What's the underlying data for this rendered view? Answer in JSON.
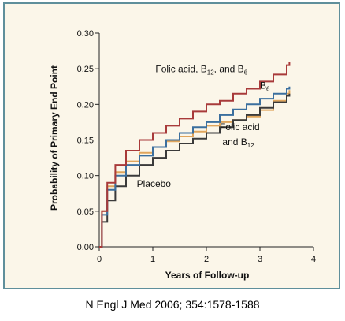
{
  "citation": "N Engl J Med 2006; 354:1578-1588",
  "chart_data": {
    "type": "line",
    "title": "",
    "xlabel": "Years of Follow-up",
    "ylabel": "Probability of Primary End Point",
    "xlim": [
      0,
      4
    ],
    "ylim": [
      0,
      0.3
    ],
    "x_ticks": [
      "0",
      "1",
      "2",
      "3",
      "4"
    ],
    "y_ticks": [
      "0.00",
      "0.05",
      "0.10",
      "0.15",
      "0.20",
      "0.25",
      "0.30"
    ],
    "series": [
      {
        "name": "Folic acid, B12, and B6",
        "color": "#a83a3a",
        "points": [
          [
            0,
            0
          ],
          [
            0.05,
            0.05
          ],
          [
            0.15,
            0.09
          ],
          [
            0.3,
            0.115
          ],
          [
            0.5,
            0.135
          ],
          [
            0.75,
            0.15
          ],
          [
            1,
            0.16
          ],
          [
            1.25,
            0.17
          ],
          [
            1.5,
            0.18
          ],
          [
            1.75,
            0.19
          ],
          [
            2,
            0.2
          ],
          [
            2.25,
            0.205
          ],
          [
            2.5,
            0.215
          ],
          [
            2.75,
            0.222
          ],
          [
            3,
            0.232
          ],
          [
            3.25,
            0.242
          ],
          [
            3.5,
            0.255
          ],
          [
            3.55,
            0.26
          ]
        ]
      },
      {
        "name": "B6",
        "color": "#3b6f9e",
        "points": [
          [
            0,
            0
          ],
          [
            0.05,
            0.045
          ],
          [
            0.15,
            0.08
          ],
          [
            0.3,
            0.1
          ],
          [
            0.5,
            0.115
          ],
          [
            0.75,
            0.128
          ],
          [
            1,
            0.14
          ],
          [
            1.25,
            0.15
          ],
          [
            1.5,
            0.16
          ],
          [
            1.75,
            0.168
          ],
          [
            2,
            0.175
          ],
          [
            2.25,
            0.185
          ],
          [
            2.5,
            0.193
          ],
          [
            2.75,
            0.2
          ],
          [
            3,
            0.208
          ],
          [
            3.25,
            0.215
          ],
          [
            3.5,
            0.222
          ],
          [
            3.55,
            0.225
          ]
        ]
      },
      {
        "name": "Folic acid and B12",
        "color": "#e0a55c",
        "points": [
          [
            0,
            0
          ],
          [
            0.05,
            0.05
          ],
          [
            0.15,
            0.085
          ],
          [
            0.3,
            0.105
          ],
          [
            0.5,
            0.12
          ],
          [
            0.75,
            0.132
          ],
          [
            1,
            0.14
          ],
          [
            1.25,
            0.148
          ],
          [
            1.5,
            0.155
          ],
          [
            1.75,
            0.162
          ],
          [
            2,
            0.17
          ],
          [
            2.25,
            0.175
          ],
          [
            2.5,
            0.178
          ],
          [
            2.75,
            0.183
          ],
          [
            3,
            0.192
          ],
          [
            3.25,
            0.205
          ],
          [
            3.5,
            0.215
          ],
          [
            3.55,
            0.22
          ]
        ]
      },
      {
        "name": "Placebo",
        "color": "#3a3a3a",
        "points": [
          [
            0,
            0
          ],
          [
            0.05,
            0.035
          ],
          [
            0.15,
            0.065
          ],
          [
            0.3,
            0.085
          ],
          [
            0.5,
            0.1
          ],
          [
            0.75,
            0.115
          ],
          [
            1,
            0.125
          ],
          [
            1.25,
            0.135
          ],
          [
            1.5,
            0.145
          ],
          [
            1.75,
            0.152
          ],
          [
            2,
            0.16
          ],
          [
            2.25,
            0.168
          ],
          [
            2.5,
            0.178
          ],
          [
            2.75,
            0.185
          ],
          [
            3,
            0.195
          ],
          [
            3.25,
            0.203
          ],
          [
            3.5,
            0.212
          ],
          [
            3.55,
            0.215
          ]
        ]
      }
    ],
    "annotations": [
      {
        "series": 0,
        "text": "Folic acid, B",
        "sub": "12",
        "tail": ", and B",
        "sub2": "6",
        "x": 1.05,
        "y": 0.245,
        "anchor": "start"
      },
      {
        "series": 1,
        "text": "B",
        "sub": "6",
        "x": 3.0,
        "y": 0.222,
        "anchor": "start"
      },
      {
        "series": 2,
        "text": "Folic acid",
        "x": 2.25,
        "y": 0.164,
        "anchor": "start"
      },
      {
        "series": 2,
        "text": "and B",
        "sub": "12",
        "x": 2.3,
        "y": 0.143,
        "anchor": "start"
      },
      {
        "series": 3,
        "text": "Placebo",
        "x": 0.7,
        "y": 0.084,
        "anchor": "start"
      }
    ]
  }
}
